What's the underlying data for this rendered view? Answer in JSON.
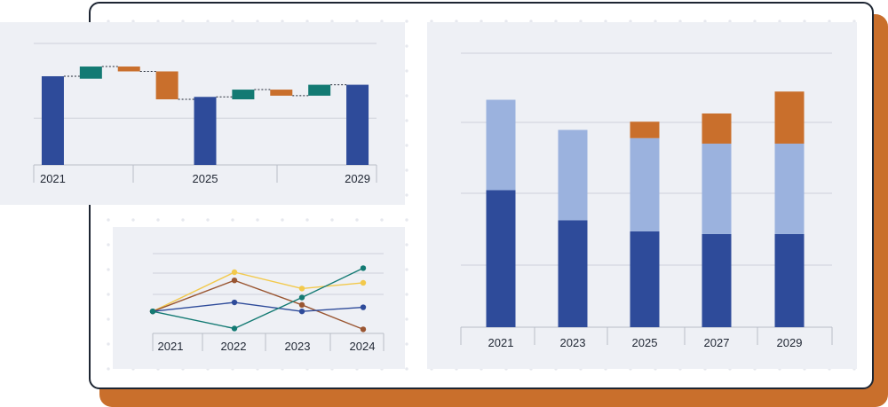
{
  "colors": {
    "dark_blue": "#2e4b9a",
    "light_blue": "#9bb2de",
    "orange": "#c96f2c",
    "teal": "#137a73",
    "yellow": "#f2c94c",
    "brown": "#9a5632",
    "navy": "#2e4b9a"
  },
  "chart_data": [
    {
      "type": "waterfall",
      "x_tick_labels": [
        "2021",
        "2025",
        "2029"
      ],
      "ylim": [
        0,
        100
      ],
      "steps": [
        {
          "kind": "total",
          "value": 73
        },
        {
          "kind": "increase",
          "from": 71,
          "to": 81
        },
        {
          "kind": "decrease",
          "from": 81,
          "to": 77
        },
        {
          "kind": "decrease",
          "from": 77,
          "to": 54
        },
        {
          "kind": "total",
          "value": 56
        },
        {
          "kind": "increase",
          "from": 54,
          "to": 62
        },
        {
          "kind": "decrease",
          "from": 62,
          "to": 57
        },
        {
          "kind": "increase",
          "from": 57,
          "to": 66
        },
        {
          "kind": "total",
          "value": 66
        }
      ]
    },
    {
      "type": "line",
      "categories": [
        "2021",
        "2022",
        "2023",
        "2024"
      ],
      "ylim": [
        0,
        100
      ],
      "series": [
        {
          "name": "yellow",
          "values": [
            27,
            75,
            55,
            62
          ]
        },
        {
          "name": "brown",
          "values": [
            27,
            65,
            35,
            5
          ]
        },
        {
          "name": "navy",
          "values": [
            27,
            38,
            27,
            32
          ]
        },
        {
          "name": "teal",
          "values": [
            27,
            6,
            44,
            80
          ]
        }
      ]
    },
    {
      "type": "bar",
      "stacked": true,
      "categories": [
        "2021",
        "2023",
        "2025",
        "2027",
        "2029"
      ],
      "ylim": [
        0,
        100
      ],
      "series": [
        {
          "name": "dark",
          "values": [
            50,
            39,
            35,
            34,
            34
          ]
        },
        {
          "name": "light",
          "values": [
            33,
            33,
            34,
            33,
            33
          ]
        },
        {
          "name": "orange",
          "values": [
            0,
            0,
            6,
            11,
            19
          ]
        }
      ]
    }
  ]
}
